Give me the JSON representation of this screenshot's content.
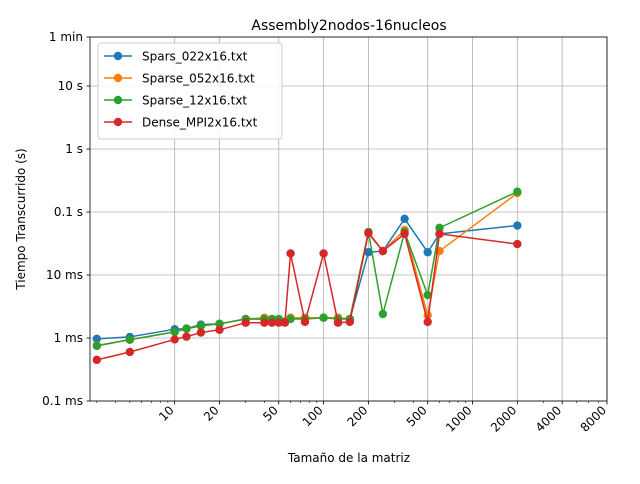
{
  "chart_data": {
    "type": "line",
    "title": "Assembly2nodos-16nucleos",
    "xlabel": "Tamaño de la matriz",
    "ylabel": "Tiempo Transcurrido (s)",
    "x_scale": "log",
    "y_scale": "log",
    "xlim": [
      2.7,
      8000
    ],
    "ylim": [
      0.0001,
      60
    ],
    "x_ticks": [
      {
        "value": 10,
        "label": "10"
      },
      {
        "value": 20,
        "label": "20"
      },
      {
        "value": 50,
        "label": "50"
      },
      {
        "value": 100,
        "label": "100"
      },
      {
        "value": 200,
        "label": "200"
      },
      {
        "value": 500,
        "label": "500"
      },
      {
        "value": 1000,
        "label": "1000"
      },
      {
        "value": 2000,
        "label": "2000"
      },
      {
        "value": 4000,
        "label": "4000"
      },
      {
        "value": 8000,
        "label": "8000"
      }
    ],
    "y_ticks": [
      {
        "value": 0.0001,
        "label": "0.1 ms"
      },
      {
        "value": 0.001,
        "label": "1 ms"
      },
      {
        "value": 0.01,
        "label": "10 ms"
      },
      {
        "value": 0.1,
        "label": "0.1 s"
      },
      {
        "value": 1,
        "label": "1 s"
      },
      {
        "value": 10,
        "label": "10 s"
      },
      {
        "value": 60,
        "label": "1 min"
      }
    ],
    "grid": true,
    "legend_position": "top-left",
    "series": [
      {
        "name": "Spars_022x16.txt",
        "color": "#1f77b4",
        "x": [
          3,
          5,
          10,
          12,
          15,
          20,
          30,
          40,
          45,
          50,
          60,
          75,
          100,
          125,
          150,
          200,
          250,
          350,
          500,
          600,
          2000
        ],
        "y": [
          0.00097,
          0.00104,
          0.00138,
          0.00141,
          0.00163,
          0.00168,
          0.002,
          0.002,
          0.002,
          0.002,
          0.0021,
          0.0021,
          0.0021,
          0.0021,
          0.002,
          0.023,
          0.024,
          0.078,
          0.023,
          0.045,
          0.061
        ]
      },
      {
        "name": "Sparse_052x16.txt",
        "color": "#ff7f0e",
        "x": [
          3,
          5,
          10,
          12,
          15,
          20,
          30,
          40,
          45,
          50,
          60,
          75,
          100,
          125,
          150,
          200,
          250,
          350,
          500,
          600,
          2000
        ],
        "y": [
          0.00076,
          0.00094,
          0.00125,
          0.00141,
          0.00156,
          0.00168,
          0.002,
          0.0021,
          0.002,
          0.002,
          0.0021,
          0.0021,
          0.0021,
          0.0021,
          0.002,
          0.048,
          0.024,
          0.052,
          0.0023,
          0.024,
          0.2
        ]
      },
      {
        "name": "Sparse_12x16.txt",
        "color": "#2ca02c",
        "x": [
          3,
          5,
          10,
          12,
          15,
          20,
          30,
          40,
          45,
          50,
          60,
          75,
          100,
          125,
          150,
          200,
          250,
          350,
          500,
          600,
          2000
        ],
        "y": [
          0.00075,
          0.00094,
          0.00125,
          0.00141,
          0.00156,
          0.00168,
          0.002,
          0.002,
          0.002,
          0.002,
          0.002,
          0.002,
          0.0021,
          0.002,
          0.002,
          0.048,
          0.0024,
          0.048,
          0.0048,
          0.056,
          0.21
        ]
      },
      {
        "name": "Dense_MPI2x16.txt",
        "color": "#d62728",
        "x": [
          3,
          5,
          10,
          12,
          15,
          20,
          30,
          40,
          45,
          50,
          55,
          60,
          75,
          100,
          125,
          150,
          200,
          250,
          350,
          500,
          600,
          2000
        ],
        "y": [
          0.00045,
          0.0006,
          0.00095,
          0.00105,
          0.00122,
          0.00135,
          0.00175,
          0.00175,
          0.00175,
          0.00175,
          0.00175,
          0.022,
          0.0018,
          0.022,
          0.00175,
          0.0018,
          0.046,
          0.024,
          0.045,
          0.0018,
          0.045,
          0.031
        ]
      }
    ]
  }
}
